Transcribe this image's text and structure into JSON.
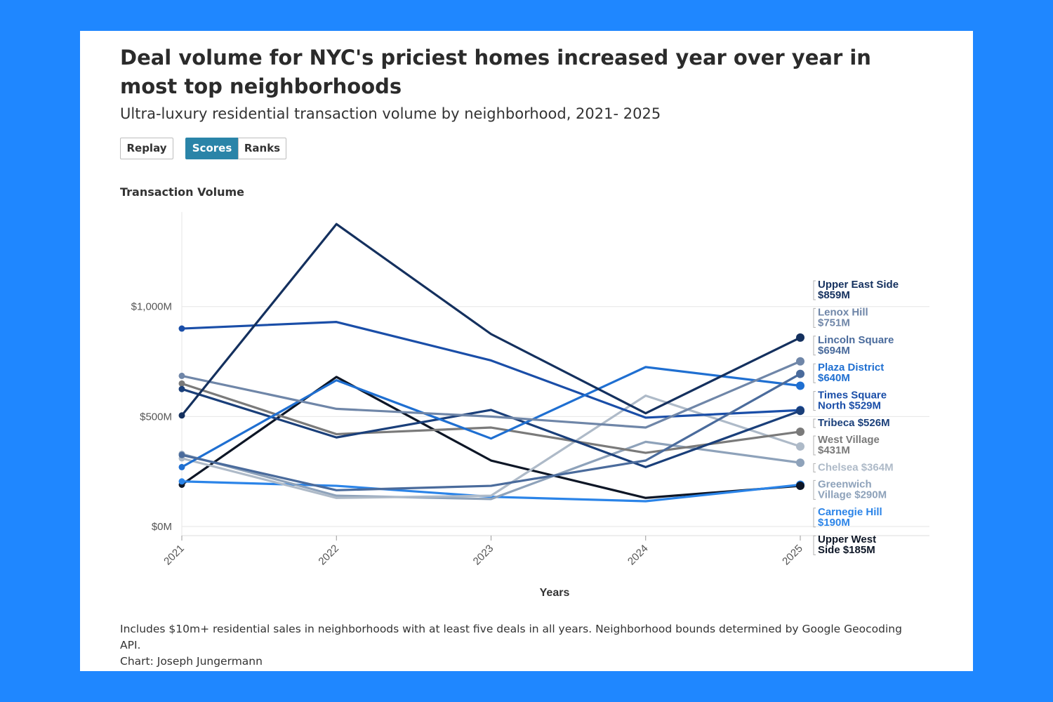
{
  "title": "Deal volume for NYC's priciest homes increased year over year in most top neighborhoods",
  "subtitle": "Ultra-luxury residential transaction volume by neighborhood, 2021- 2025",
  "buttons": {
    "replay": "Replay",
    "scores": "Scores",
    "ranks": "Ranks",
    "active": "Scores"
  },
  "footnote": {
    "note": "Includes $10m+ residential sales in neighborhoods with at least five deals in all years. Neighborhood bounds determined by Google Geocoding API.",
    "credit": "Chart: Joseph Jungermann"
  },
  "chart_data": {
    "type": "line",
    "ylabel": "Transaction Volume",
    "xlabel": "Years",
    "x": [
      "2021",
      "2022",
      "2023",
      "2024",
      "2025"
    ],
    "y_ticks": [
      {
        "value": 0,
        "label": "$0M"
      },
      {
        "value": 500,
        "label": "$500M"
      },
      {
        "value": 1000,
        "label": "$1,000M"
      }
    ],
    "ylim": [
      0,
      1430
    ],
    "grid": true,
    "series": [
      {
        "name": "Upper East Side",
        "end_label": [
          "Upper East Side",
          "$859M"
        ],
        "color": "#14305e",
        "values": [
          505,
          1375,
          875,
          515,
          859
        ]
      },
      {
        "name": "Lenox Hill",
        "end_label": [
          "Lenox Hill",
          "$751M"
        ],
        "color": "#6f86a8",
        "values": [
          685,
          535,
          500,
          450,
          751
        ]
      },
      {
        "name": "Lincoln Square",
        "end_label": [
          "Lincoln Square",
          "$694M"
        ],
        "color": "#4a6b9c",
        "values": [
          325,
          165,
          185,
          300,
          694
        ]
      },
      {
        "name": "Plaza District",
        "end_label": [
          "Plaza District",
          "$640M"
        ],
        "color": "#1f6fd1",
        "values": [
          270,
          665,
          400,
          725,
          640
        ]
      },
      {
        "name": "Times Square North",
        "end_label": [
          "Times Square",
          "North $529M"
        ],
        "color": "#1a4ea8",
        "values": [
          900,
          930,
          755,
          495,
          529
        ]
      },
      {
        "name": "Tribeca",
        "end_label": [
          "Tribeca $526M"
        ],
        "color": "#1a3f7a",
        "values": [
          625,
          405,
          530,
          270,
          526
        ]
      },
      {
        "name": "West Village",
        "end_label": [
          "West Village",
          "$431M"
        ],
        "color": "#7a7a7a",
        "values": [
          650,
          420,
          450,
          335,
          431
        ]
      },
      {
        "name": "Chelsea",
        "end_label": [
          "Chelsea $364M"
        ],
        "color": "#aebac8",
        "values": [
          310,
          130,
          140,
          595,
          364
        ]
      },
      {
        "name": "Greenwich Village",
        "end_label": [
          "Greenwich",
          "Village $290M"
        ],
        "color": "#8ea2ba",
        "values": [
          330,
          140,
          125,
          385,
          290
        ]
      },
      {
        "name": "Carnegie Hill",
        "end_label": [
          "Carnegie Hill",
          "$190M"
        ],
        "color": "#2b84e8",
        "values": [
          205,
          185,
          135,
          115,
          190
        ]
      },
      {
        "name": "Upper West Side",
        "end_label": [
          "Upper West",
          "Side $185M"
        ],
        "color": "#0d1626",
        "values": [
          190,
          680,
          300,
          130,
          185
        ]
      }
    ]
  }
}
